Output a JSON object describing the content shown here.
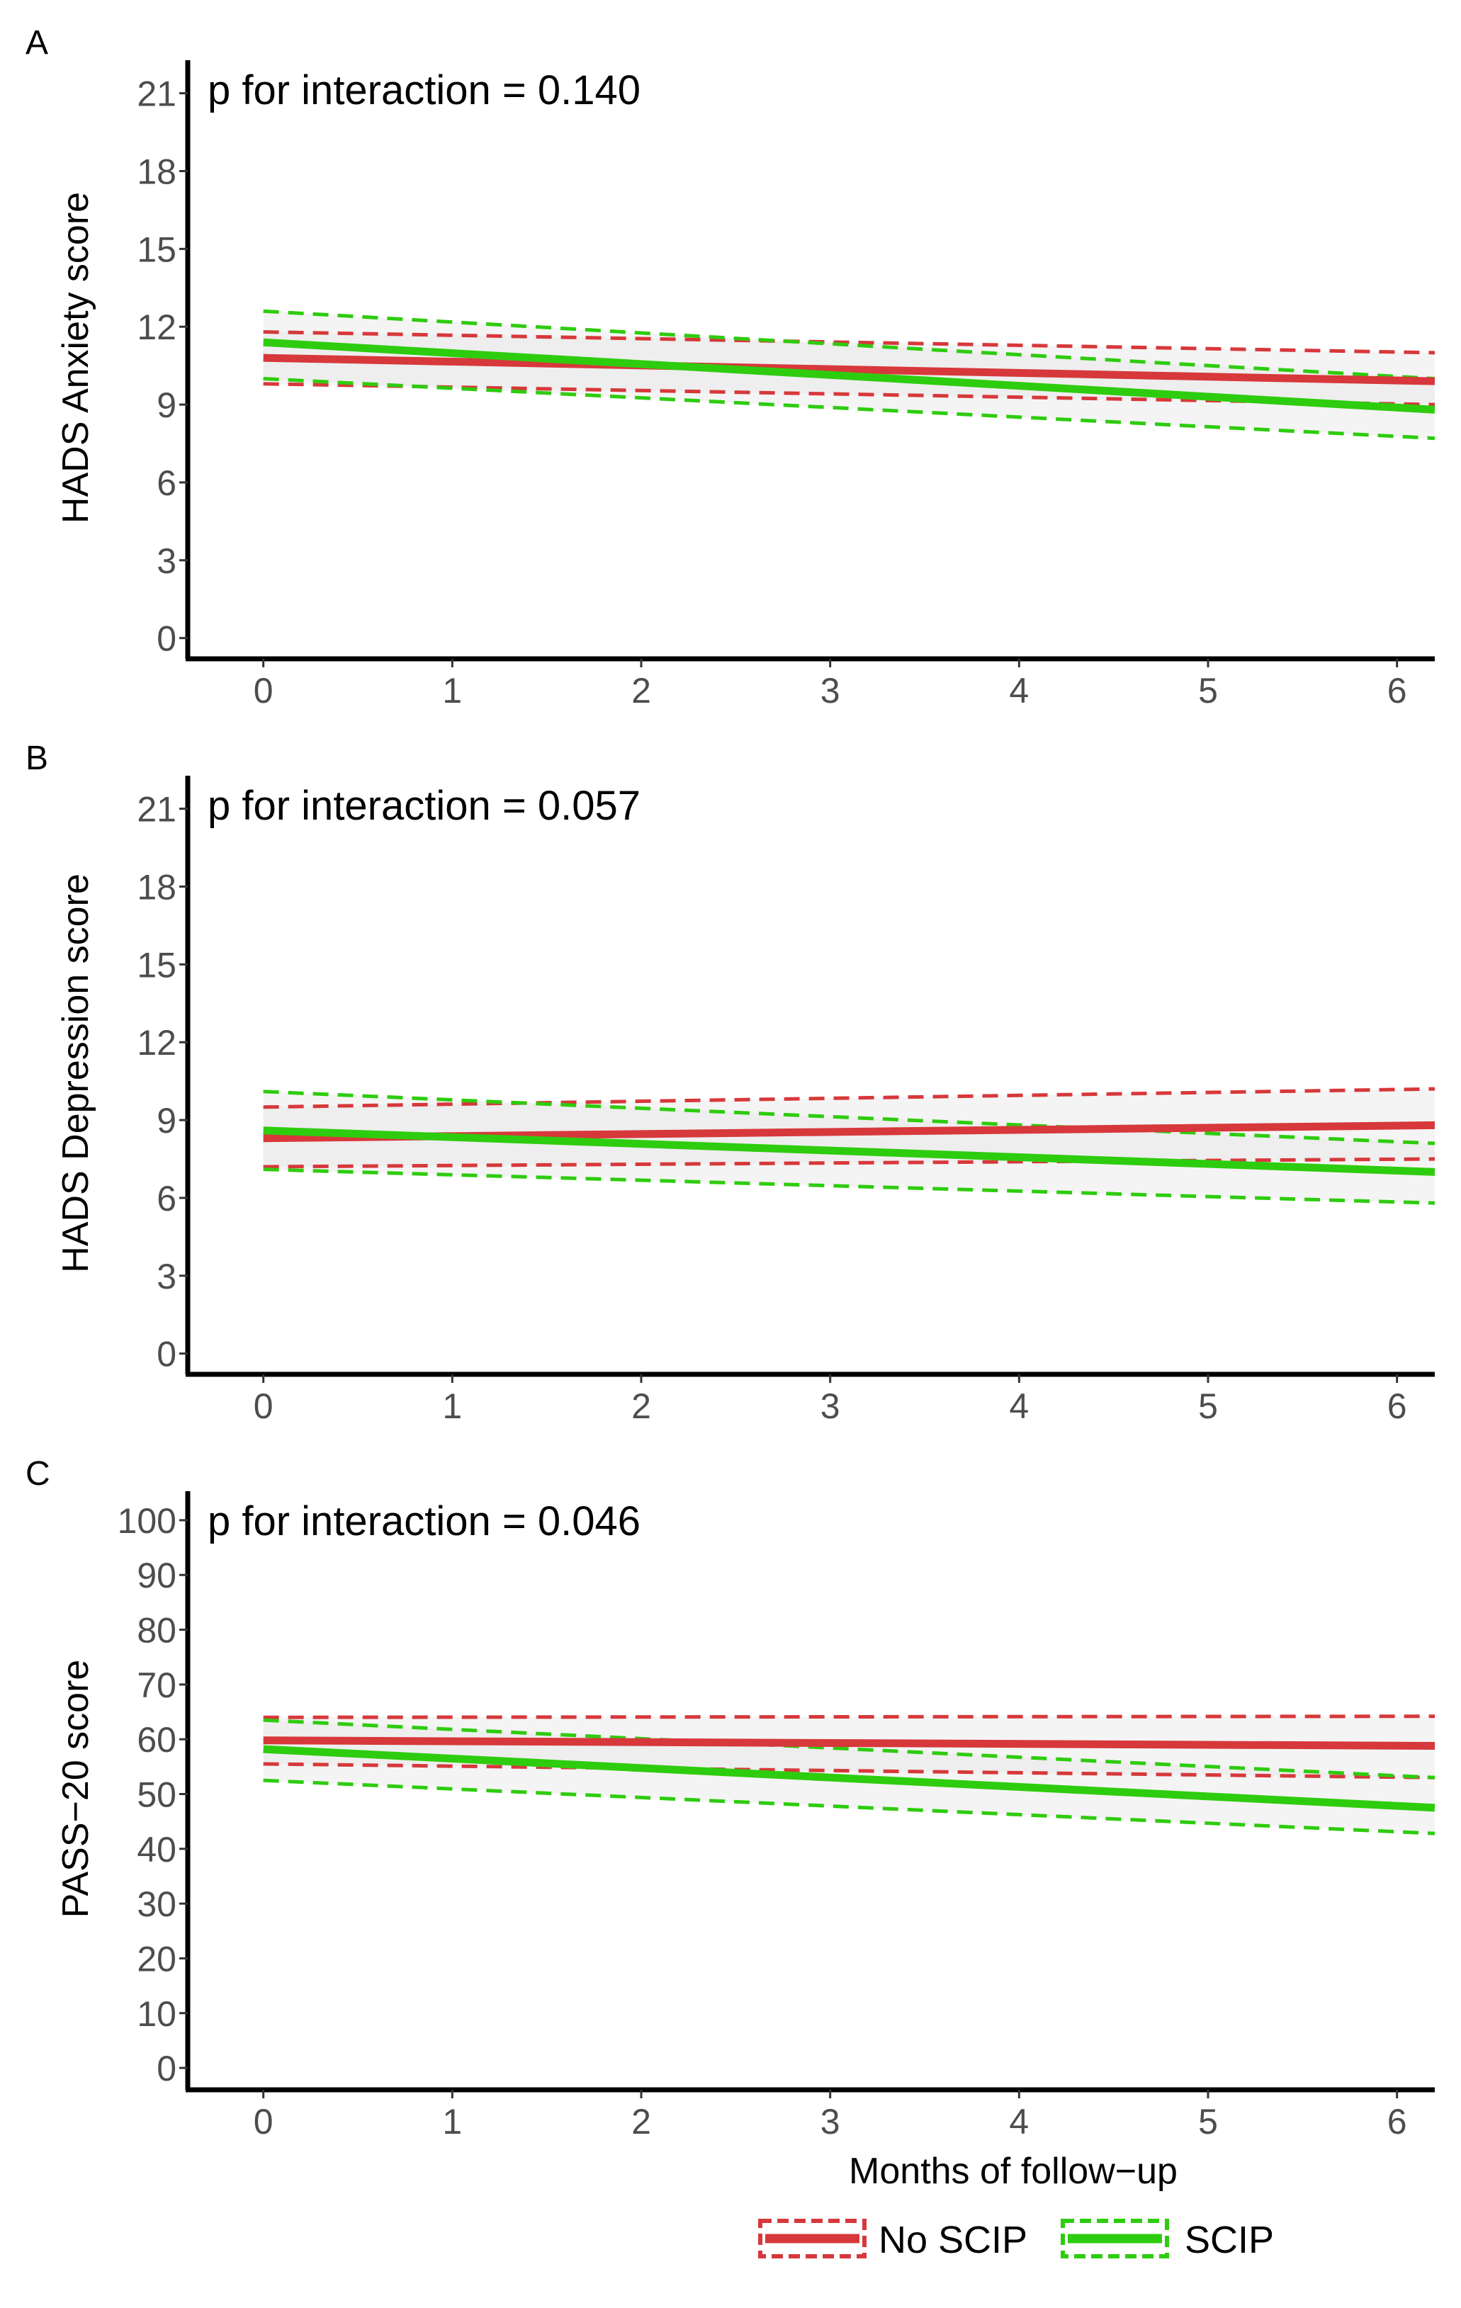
{
  "colors": {
    "no_scip": "#d7383b",
    "scip": "#2ecc0e",
    "ribbon": "#e6e6e6",
    "axis": "#000000",
    "tick_text": "#4d4d4d"
  },
  "chart_data": [
    {
      "type": "line",
      "panel_label": "A",
      "annotation": "p for interaction = 0.140",
      "xlabel": "",
      "ylabel": "HADS Anxiety score",
      "xlim": [
        -0.4,
        6.2
      ],
      "ylim": [
        -0.8,
        22
      ],
      "xticks": [
        0,
        1,
        2,
        3,
        4,
        5,
        6
      ],
      "yticks": [
        0,
        3,
        6,
        9,
        12,
        15,
        18,
        21
      ],
      "series": [
        {
          "name": "No SCIP",
          "x": [
            0,
            6.2
          ],
          "fit": [
            10.8,
            9.9
          ],
          "lower": [
            9.8,
            9.0
          ],
          "upper": [
            11.8,
            11.0
          ]
        },
        {
          "name": "SCIP",
          "x": [
            0,
            6.2
          ],
          "fit": [
            11.4,
            8.8
          ],
          "lower": [
            10.0,
            7.7
          ],
          "upper": [
            12.6,
            10.0
          ]
        }
      ]
    },
    {
      "type": "line",
      "panel_label": "B",
      "annotation": "p for interaction = 0.057",
      "xlabel": "",
      "ylabel": "HADS Depression score",
      "xlim": [
        -0.4,
        6.2
      ],
      "ylim": [
        -0.8,
        22
      ],
      "xticks": [
        0,
        1,
        2,
        3,
        4,
        5,
        6
      ],
      "yticks": [
        0,
        3,
        6,
        9,
        12,
        15,
        18,
        21
      ],
      "series": [
        {
          "name": "No SCIP",
          "x": [
            0,
            6.2
          ],
          "fit": [
            8.3,
            8.8
          ],
          "lower": [
            7.2,
            7.5
          ],
          "upper": [
            9.5,
            10.2
          ]
        },
        {
          "name": "SCIP",
          "x": [
            0,
            6.2
          ],
          "fit": [
            8.6,
            7.0
          ],
          "lower": [
            7.1,
            5.8
          ],
          "upper": [
            10.1,
            8.1
          ]
        }
      ]
    },
    {
      "type": "line",
      "panel_label": "C",
      "annotation": "p for interaction = 0.046",
      "xlabel": "Months of follow−up",
      "ylabel": "PASS−20 score",
      "xlim": [
        -0.4,
        6.2
      ],
      "ylim": [
        -4,
        104
      ],
      "xticks": [
        0,
        1,
        2,
        3,
        4,
        5,
        6
      ],
      "yticks": [
        0,
        10,
        20,
        30,
        40,
        50,
        60,
        70,
        80,
        90,
        100
      ],
      "series": [
        {
          "name": "No SCIP",
          "x": [
            0,
            6.2
          ],
          "fit": [
            59.8,
            58.8
          ],
          "lower": [
            55.5,
            53.0
          ],
          "upper": [
            64.0,
            64.2
          ]
        },
        {
          "name": "SCIP",
          "x": [
            0,
            6.2
          ],
          "fit": [
            58.2,
            47.5
          ],
          "lower": [
            52.5,
            42.8
          ],
          "upper": [
            63.5,
            53.0
          ]
        }
      ]
    }
  ],
  "legend": {
    "position": "bottom-right",
    "items": [
      {
        "label": "No SCIP",
        "color_key": "no_scip"
      },
      {
        "label": "SCIP",
        "color_key": "scip"
      }
    ]
  }
}
